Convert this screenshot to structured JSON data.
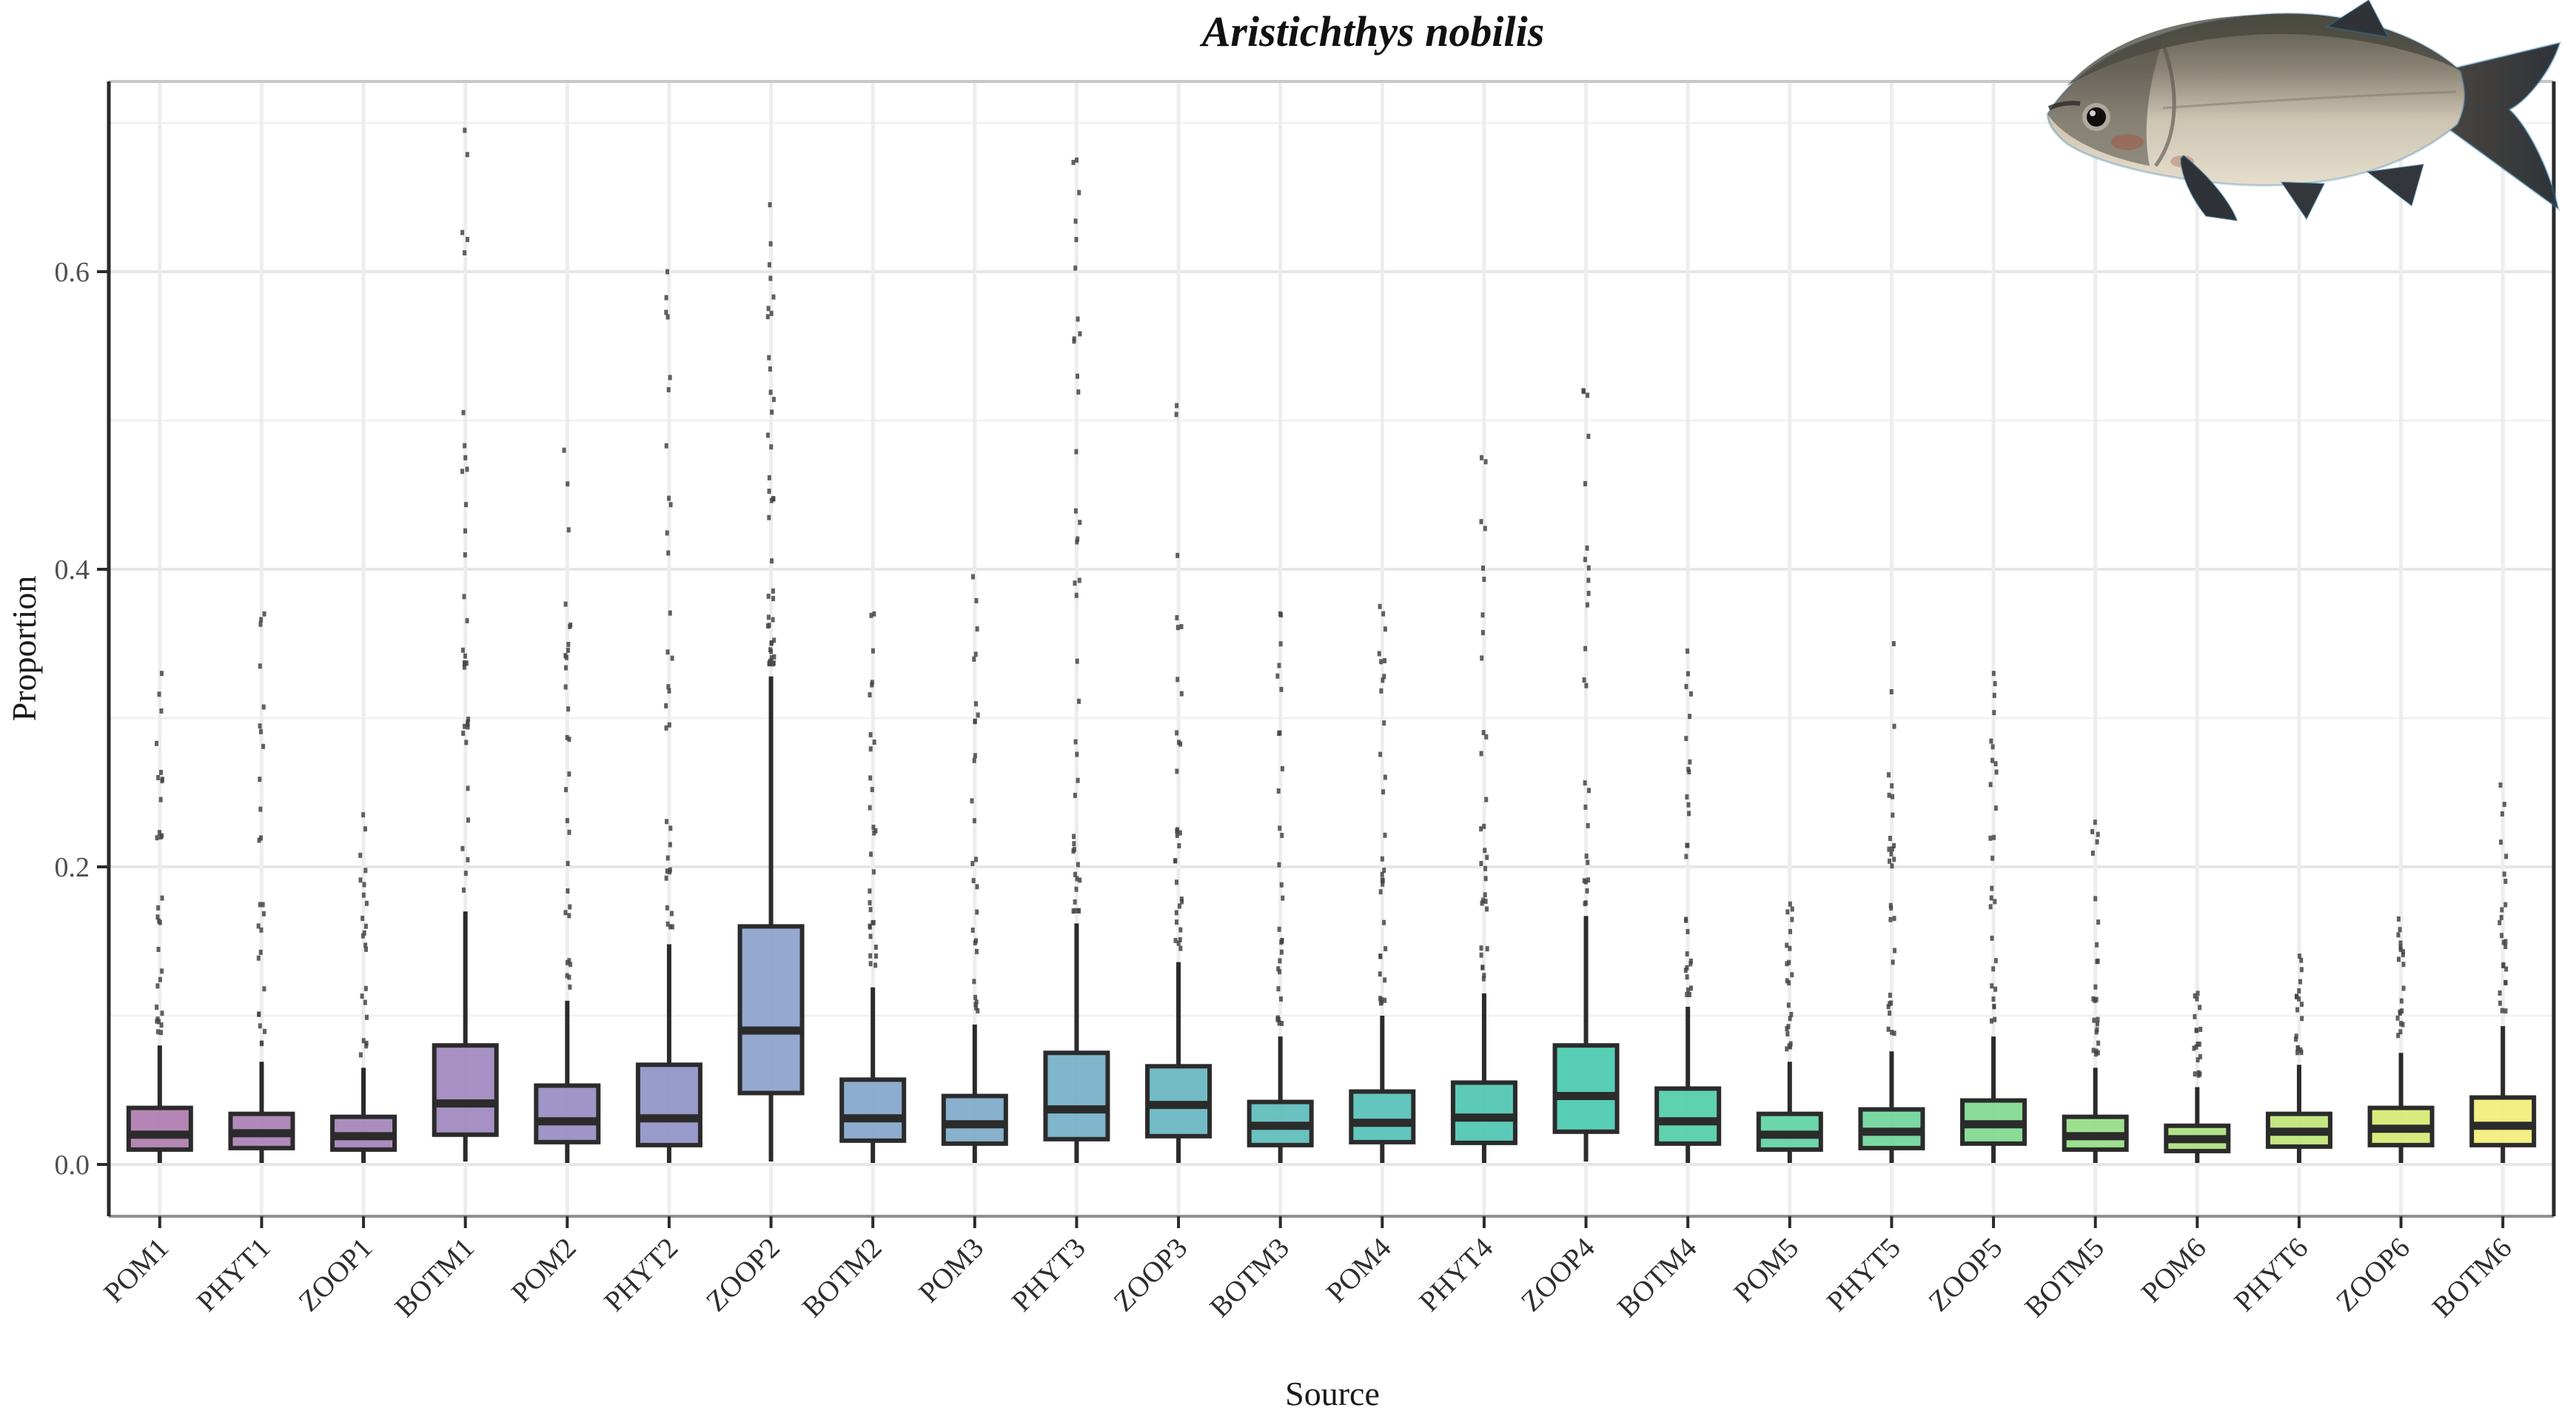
{
  "title": "Aristichthys nobilis",
  "x_axis": {
    "label": "Source"
  },
  "y_axis": {
    "label": "Proportion",
    "tick_labels": [
      "0.0",
      "0.2",
      "0.4",
      "0.6"
    ],
    "tick_values": [
      0.0,
      0.2,
      0.4,
      0.6
    ]
  },
  "decoration": {
    "fish_illustration": "bighead-carp-photo"
  },
  "style_colors": {
    "box_border": "#2b2b2b",
    "outlier_dot": "#454545",
    "grid_major": "#e6e6e6",
    "grid_minor": "#f2f2f2",
    "grid_vertical": "#ededed",
    "panel_border_top": "#c8c8c8",
    "panel_border_bottom": "#8f8f8f",
    "axis_line": "#2b2b2b",
    "tick_label": "#4f4f4f",
    "x_tick_label": "#2e2e2e"
  },
  "chart_data": {
    "type": "boxplot",
    "title": "Aristichthys nobilis",
    "xlabel": "Source",
    "ylabel": "Proportion",
    "ylim": [
      -0.034,
      0.728
    ],
    "grid": {
      "major": [
        0.0,
        0.2,
        0.4,
        0.6
      ],
      "minor": [
        0.1,
        0.3,
        0.5,
        0.7
      ]
    },
    "legend": "none",
    "categories": [
      "POM1",
      "PHYT1",
      "ZOOP1",
      "BOTM1",
      "POM2",
      "PHYT2",
      "ZOOP2",
      "BOTM2",
      "POM3",
      "PHYT3",
      "ZOOP3",
      "BOTM3",
      "POM4",
      "PHYT4",
      "ZOOP4",
      "BOTM4",
      "POM5",
      "PHYT5",
      "ZOOP5",
      "BOTM5",
      "POM6",
      "PHYT6",
      "ZOOP6",
      "BOTM6"
    ],
    "series": [
      {
        "name": "POM1",
        "color": "#b17fb1",
        "q1": 0.01,
        "median": 0.02,
        "q3": 0.038,
        "whisker_low": 0.001,
        "whisker_high": 0.08,
        "outlier_max": 0.33,
        "outlier_count": 30
      },
      {
        "name": "PHYT1",
        "color": "#ad83b6",
        "q1": 0.011,
        "median": 0.021,
        "q3": 0.034,
        "whisker_low": 0.001,
        "whisker_high": 0.069,
        "outlier_max": 0.37,
        "outlier_count": 26
      },
      {
        "name": "ZOOP1",
        "color": "#a787ba",
        "q1": 0.01,
        "median": 0.019,
        "q3": 0.032,
        "whisker_low": 0.001,
        "whisker_high": 0.065,
        "outlier_max": 0.235,
        "outlier_count": 22
      },
      {
        "name": "BOTM1",
        "color": "#a18bbf",
        "q1": 0.02,
        "median": 0.041,
        "q3": 0.08,
        "whisker_low": 0.002,
        "whisker_high": 0.17,
        "outlier_max": 0.695,
        "outlier_count": 34
      },
      {
        "name": "POM2",
        "color": "#9a90c4",
        "q1": 0.015,
        "median": 0.029,
        "q3": 0.053,
        "whisker_low": 0.001,
        "whisker_high": 0.11,
        "outlier_max": 0.48,
        "outlier_count": 30
      },
      {
        "name": "PHYT2",
        "color": "#9496c8",
        "q1": 0.013,
        "median": 0.031,
        "q3": 0.067,
        "whisker_low": 0.001,
        "whisker_high": 0.148,
        "outlier_max": 0.6,
        "outlier_count": 32
      },
      {
        "name": "ZOOP2",
        "color": "#8fa3cd",
        "q1": 0.048,
        "median": 0.09,
        "q3": 0.16,
        "whisker_low": 0.002,
        "whisker_high": 0.328,
        "outlier_max": 0.645,
        "outlier_count": 42
      },
      {
        "name": "BOTM2",
        "color": "#88a9cb",
        "q1": 0.016,
        "median": 0.031,
        "q3": 0.057,
        "whisker_low": 0.001,
        "whisker_high": 0.119,
        "outlier_max": 0.37,
        "outlier_count": 30
      },
      {
        "name": "POM3",
        "color": "#81adca",
        "q1": 0.014,
        "median": 0.027,
        "q3": 0.046,
        "whisker_low": 0.001,
        "whisker_high": 0.094,
        "outlier_max": 0.395,
        "outlier_count": 28
      },
      {
        "name": "PHYT3",
        "color": "#78b2c8",
        "q1": 0.017,
        "median": 0.037,
        "q3": 0.075,
        "whisker_low": 0.001,
        "whisker_high": 0.162,
        "outlier_max": 0.675,
        "outlier_count": 40
      },
      {
        "name": "ZOOP3",
        "color": "#6cb8c2",
        "q1": 0.019,
        "median": 0.04,
        "q3": 0.066,
        "whisker_low": 0.001,
        "whisker_high": 0.136,
        "outlier_max": 0.51,
        "outlier_count": 30
      },
      {
        "name": "BOTM3",
        "color": "#61bfbd",
        "q1": 0.013,
        "median": 0.026,
        "q3": 0.042,
        "whisker_low": 0.001,
        "whisker_high": 0.086,
        "outlier_max": 0.37,
        "outlier_count": 30
      },
      {
        "name": "POM4",
        "color": "#5ac3ba",
        "q1": 0.015,
        "median": 0.028,
        "q3": 0.049,
        "whisker_low": 0.001,
        "whisker_high": 0.1,
        "outlier_max": 0.375,
        "outlier_count": 32
      },
      {
        "name": "PHYT4",
        "color": "#54c7b5",
        "q1": 0.0145,
        "median": 0.0315,
        "q3": 0.055,
        "whisker_low": 0.001,
        "whisker_high": 0.115,
        "outlier_max": 0.475,
        "outlier_count": 32
      },
      {
        "name": "ZOOP4",
        "color": "#4fcbb0",
        "q1": 0.022,
        "median": 0.046,
        "q3": 0.08,
        "whisker_low": 0.002,
        "whisker_high": 0.167,
        "outlier_max": 0.52,
        "outlier_count": 26
      },
      {
        "name": "BOTM4",
        "color": "#57cfab",
        "q1": 0.014,
        "median": 0.029,
        "q3": 0.051,
        "whisker_low": 0.001,
        "whisker_high": 0.106,
        "outlier_max": 0.345,
        "outlier_count": 28
      },
      {
        "name": "POM5",
        "color": "#65d3a5",
        "q1": 0.01,
        "median": 0.02,
        "q3": 0.034,
        "whisker_low": 0.001,
        "whisker_high": 0.069,
        "outlier_max": 0.175,
        "outlier_count": 22
      },
      {
        "name": "PHYT5",
        "color": "#73d79e",
        "q1": 0.011,
        "median": 0.022,
        "q3": 0.037,
        "whisker_low": 0.001,
        "whisker_high": 0.076,
        "outlier_max": 0.35,
        "outlier_count": 30
      },
      {
        "name": "ZOOP5",
        "color": "#85da93",
        "q1": 0.014,
        "median": 0.027,
        "q3": 0.043,
        "whisker_low": 0.001,
        "whisker_high": 0.086,
        "outlier_max": 0.33,
        "outlier_count": 28
      },
      {
        "name": "BOTM5",
        "color": "#98de89",
        "q1": 0.01,
        "median": 0.019,
        "q3": 0.032,
        "whisker_low": 0.001,
        "whisker_high": 0.065,
        "outlier_max": 0.23,
        "outlier_count": 24
      },
      {
        "name": "POM6",
        "color": "#ace281",
        "q1": 0.009,
        "median": 0.017,
        "q3": 0.026,
        "whisker_low": 0.001,
        "whisker_high": 0.052,
        "outlier_max": 0.115,
        "outlier_count": 18
      },
      {
        "name": "PHYT6",
        "color": "#c1e67b",
        "q1": 0.012,
        "median": 0.022,
        "q3": 0.034,
        "whisker_low": 0.001,
        "whisker_high": 0.067,
        "outlier_max": 0.14,
        "outlier_count": 18
      },
      {
        "name": "ZOOP6",
        "color": "#d8ea77",
        "q1": 0.013,
        "median": 0.024,
        "q3": 0.038,
        "whisker_low": 0.001,
        "whisker_high": 0.075,
        "outlier_max": 0.165,
        "outlier_count": 20
      },
      {
        "name": "BOTM6",
        "color": "#f2ee7d",
        "q1": 0.013,
        "median": 0.026,
        "q3": 0.045,
        "whisker_low": 0.001,
        "whisker_high": 0.093,
        "outlier_max": 0.255,
        "outlier_count": 24
      }
    ]
  }
}
